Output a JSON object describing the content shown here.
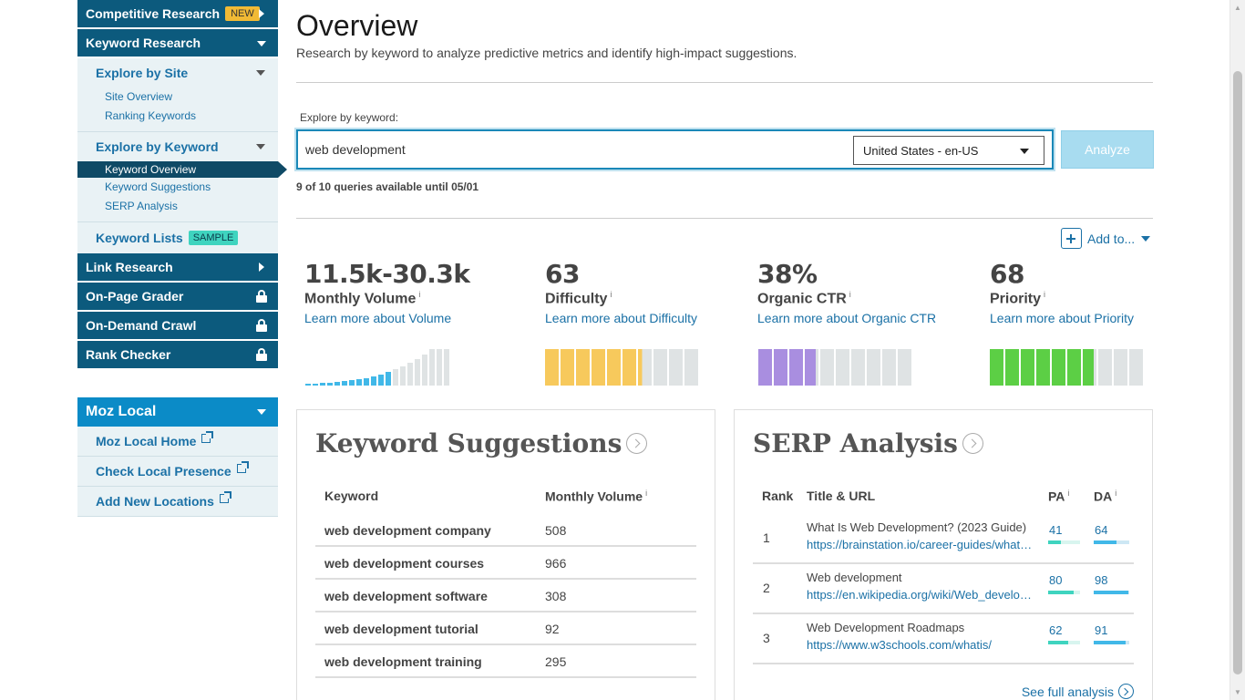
{
  "sidebar": {
    "competitive_research": {
      "label": "Competitive Research",
      "badge": "NEW"
    },
    "keyword_research": {
      "label": "Keyword Research"
    },
    "explore_by_site": {
      "label": "Explore by Site",
      "items": [
        "Site Overview",
        "Ranking Keywords"
      ]
    },
    "explore_by_keyword": {
      "label": "Explore by Keyword",
      "active": "Keyword Overview",
      "items": [
        "Keyword Suggestions",
        "SERP Analysis"
      ]
    },
    "keyword_lists": {
      "label": "Keyword Lists",
      "badge": "SAMPLE"
    },
    "link_research": {
      "label": "Link Research"
    },
    "on_page_grader": {
      "label": "On-Page Grader"
    },
    "on_demand_crawl": {
      "label": "On-Demand Crawl"
    },
    "rank_checker": {
      "label": "Rank Checker"
    },
    "moz_local": {
      "label": "Moz Local",
      "items": [
        "Moz Local Home",
        "Check Local Presence",
        "Add New Locations"
      ]
    }
  },
  "main": {
    "title": "Overview",
    "subtitle": "Research by keyword to analyze predictive metrics and identify high-impact suggestions.",
    "search": {
      "label": "Explore by keyword:",
      "value": "web development",
      "locale": "United States - en-US",
      "analyze": "Analyze"
    },
    "queries_note": "9 of 10 queries available until 05/01",
    "add_to": "Add to...",
    "metrics": [
      {
        "value": "11.5k-30.3k",
        "name": "Monthly Volume",
        "info": "i",
        "learn": "Learn more about Volume"
      },
      {
        "value": "63",
        "name": "Difficulty",
        "info": "i",
        "learn": "Learn more about Difficulty",
        "level": 63,
        "color": "#f7c95c"
      },
      {
        "value": "38%",
        "name": "Organic CTR",
        "info": "i",
        "learn": "Learn more about Organic CTR",
        "level": 38,
        "color": "#a98ee0"
      },
      {
        "value": "68",
        "name": "Priority",
        "info": "i",
        "learn": "Learn more about Priority",
        "level": 68,
        "color": "#5ccf45"
      }
    ],
    "keyword_suggestions": {
      "title": "Keyword Suggestions",
      "columns": [
        "Keyword",
        "Monthly Volume"
      ],
      "info": "i",
      "rows": [
        {
          "keyword": "web development company",
          "volume": "508"
        },
        {
          "keyword": "web development courses",
          "volume": "966"
        },
        {
          "keyword": "web development software",
          "volume": "308"
        },
        {
          "keyword": "web development tutorial",
          "volume": "92"
        },
        {
          "keyword": "web development training",
          "volume": "295"
        }
      ]
    },
    "serp_analysis": {
      "title": "SERP Analysis",
      "columns": [
        "Rank",
        "Title & URL",
        "PA",
        "DA"
      ],
      "info": "i",
      "rows": [
        {
          "rank": "1",
          "title": "What Is Web Development? (2023 Guide)",
          "url": "https://brainstation.io/career-guides/what-is-web-development",
          "pa": "41",
          "da": "64"
        },
        {
          "rank": "2",
          "title": "Web development",
          "url": "https://en.wikipedia.org/wiki/Web_development",
          "pa": "80",
          "da": "98"
        },
        {
          "rank": "3",
          "title": "Web Development Roadmaps",
          "url": "https://www.w3schools.com/whatis/",
          "pa": "62",
          "da": "91"
        }
      ],
      "see_full": "See full analysis"
    }
  },
  "colors": {
    "nav_dark": "#0c5a7d",
    "moz_local": "#0b8bc7",
    "link": "#1b71a6",
    "volume_bar_active": "#41b8e8",
    "volume_bar_inactive": "#dfe3e4"
  }
}
